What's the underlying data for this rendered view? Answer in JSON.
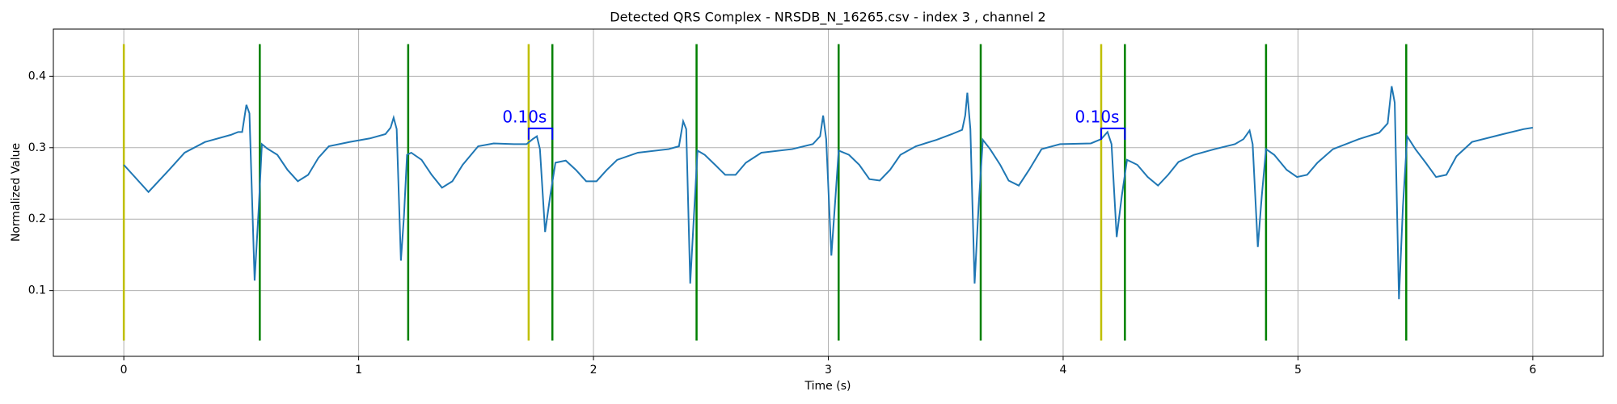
{
  "chart_data": {
    "type": "line",
    "title": "Detected QRS Complex - NRSDB_N_16265.csv - index 3 , channel 2",
    "xlabel": "Time (s)",
    "ylabel": "Normalized Value",
    "xlim": [
      -0.3,
      6.3
    ],
    "ylim": [
      0.008,
      0.466
    ],
    "xticks": [
      0,
      1,
      2,
      3,
      4,
      5,
      6
    ],
    "yticks": [
      0.1,
      0.2,
      0.3,
      0.4
    ],
    "grid": true,
    "x": [
      0.0,
      0.105,
      0.193,
      0.259,
      0.346,
      0.456,
      0.487,
      0.504,
      0.522,
      0.535,
      0.557,
      0.575,
      0.588,
      0.61,
      0.654,
      0.697,
      0.741,
      0.785,
      0.829,
      0.873,
      0.961,
      1.048,
      1.114,
      1.136,
      1.149,
      1.162,
      1.18,
      1.193,
      1.206,
      1.224,
      1.268,
      1.311,
      1.355,
      1.399,
      1.443,
      1.509,
      1.575,
      1.662,
      1.715,
      1.741,
      1.759,
      1.772,
      1.794,
      1.816,
      1.838,
      1.882,
      1.925,
      1.969,
      2.013,
      2.057,
      2.101,
      2.189,
      2.32,
      2.364,
      2.382,
      2.395,
      2.412,
      2.43,
      2.443,
      2.474,
      2.518,
      2.561,
      2.605,
      2.649,
      2.715,
      2.846,
      2.934,
      2.965,
      2.978,
      2.991,
      3.013,
      3.031,
      3.044,
      3.088,
      3.132,
      3.175,
      3.219,
      3.263,
      3.307,
      3.373,
      3.461,
      3.526,
      3.57,
      3.583,
      3.592,
      3.605,
      3.623,
      3.64,
      3.658,
      3.689,
      3.732,
      3.768,
      3.811,
      3.855,
      3.908,
      3.987,
      4.118,
      4.162,
      4.189,
      4.206,
      4.228,
      4.25,
      4.272,
      4.316,
      4.36,
      4.404,
      4.447,
      4.491,
      4.557,
      4.645,
      4.732,
      4.768,
      4.794,
      4.807,
      4.829,
      4.846,
      4.864,
      4.899,
      4.952,
      4.996,
      5.039,
      5.083,
      5.149,
      5.259,
      5.346,
      5.382,
      5.399,
      5.412,
      5.43,
      5.447,
      5.465,
      5.5,
      5.544,
      5.588,
      5.632,
      5.675,
      5.741,
      5.873,
      5.961,
      6.0
    ],
    "series": [
      {
        "color": "#1f77b4",
        "values": [
          0.276,
          0.238,
          0.269,
          0.293,
          0.308,
          0.318,
          0.322,
          0.322,
          0.36,
          0.348,
          0.114,
          0.218,
          0.305,
          0.299,
          0.29,
          0.269,
          0.253,
          0.262,
          0.286,
          0.302,
          0.308,
          0.313,
          0.319,
          0.328,
          0.342,
          0.326,
          0.142,
          0.204,
          0.29,
          0.293,
          0.283,
          0.262,
          0.244,
          0.253,
          0.276,
          0.302,
          0.306,
          0.305,
          0.305,
          0.312,
          0.316,
          0.298,
          0.182,
          0.233,
          0.279,
          0.282,
          0.269,
          0.253,
          0.253,
          0.269,
          0.283,
          0.293,
          0.298,
          0.302,
          0.337,
          0.326,
          0.11,
          0.218,
          0.296,
          0.29,
          0.276,
          0.262,
          0.262,
          0.279,
          0.293,
          0.298,
          0.305,
          0.316,
          0.345,
          0.312,
          0.149,
          0.233,
          0.296,
          0.29,
          0.276,
          0.256,
          0.254,
          0.269,
          0.29,
          0.302,
          0.311,
          0.319,
          0.325,
          0.345,
          0.377,
          0.326,
          0.11,
          0.218,
          0.311,
          0.298,
          0.276,
          0.254,
          0.247,
          0.269,
          0.298,
          0.305,
          0.306,
          0.312,
          0.322,
          0.305,
          0.175,
          0.233,
          0.283,
          0.276,
          0.259,
          0.247,
          0.262,
          0.28,
          0.29,
          0.298,
          0.305,
          0.312,
          0.324,
          0.305,
          0.161,
          0.233,
          0.298,
          0.29,
          0.269,
          0.259,
          0.262,
          0.279,
          0.298,
          0.312,
          0.321,
          0.334,
          0.386,
          0.363,
          0.088,
          0.218,
          0.316,
          0.298,
          0.279,
          0.259,
          0.262,
          0.288,
          0.308,
          0.319,
          0.326,
          0.328
        ]
      }
    ],
    "vline_range": [
      0.03,
      0.445
    ],
    "vlines": [
      {
        "color": "#bfbf00",
        "x": [
          0.0,
          1.724,
          4.162
        ]
      },
      {
        "color": "#008000",
        "x": [
          0.579,
          1.211,
          1.825,
          2.439,
          3.044,
          3.649,
          4.263,
          4.864,
          5.461
        ]
      }
    ],
    "annotations": [
      {
        "text": "0.10s",
        "x": [
          1.724,
          1.825
        ],
        "y": 0.327,
        "color": "#0000ff"
      },
      {
        "text": "0.10s",
        "x": [
          4.162,
          4.263
        ],
        "y": 0.327,
        "color": "#0000ff"
      }
    ]
  }
}
